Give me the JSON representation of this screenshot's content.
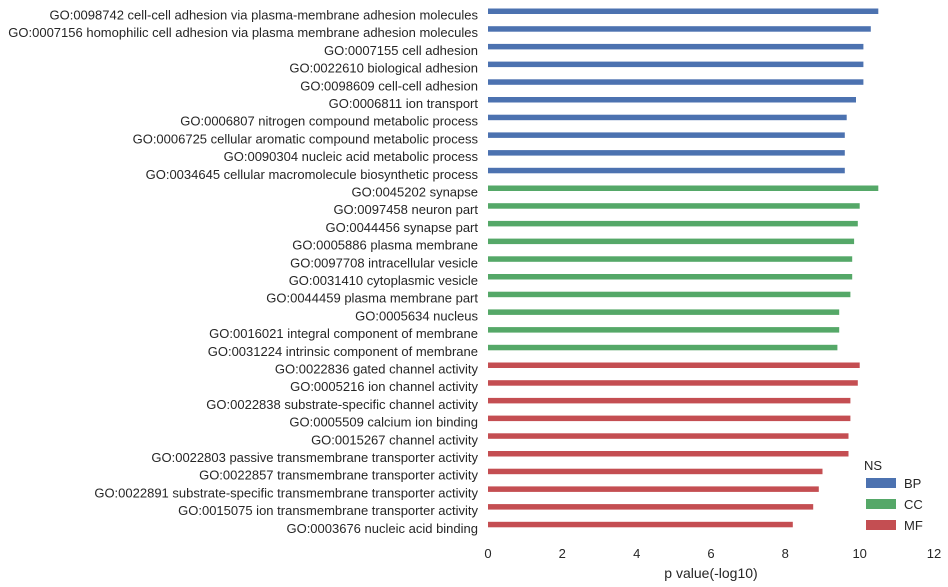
{
  "chart_data": {
    "type": "bar",
    "orientation": "horizontal",
    "xlabel": "p value(-log10)",
    "xlim": [
      0,
      12
    ],
    "xticks": [
      0,
      2,
      4,
      6,
      8,
      10,
      12
    ],
    "grid": false,
    "legend_position": "bottom-right",
    "legend_title": "NS",
    "series_colors": {
      "BP": "#4c72b0",
      "CC": "#55a868",
      "MF": "#c44e52"
    },
    "series": [
      {
        "name": "BP",
        "categories": [
          "GO:0098742 cell-cell adhesion via plasma-membrane adhesion molecules",
          "GO:0007156 homophilic cell adhesion via plasma membrane adhesion molecules",
          "GO:0007155 cell adhesion",
          "GO:0022610 biological adhesion",
          "GO:0098609 cell-cell adhesion",
          "GO:0006811 ion transport",
          "GO:0006807 nitrogen compound metabolic process",
          "GO:0006725 cellular aromatic compound metabolic process",
          "GO:0090304 nucleic acid metabolic process",
          "GO:0034645 cellular macromolecule biosynthetic process"
        ],
        "values": [
          10.5,
          10.3,
          10.1,
          10.1,
          10.1,
          9.9,
          9.65,
          9.6,
          9.6,
          9.6
        ]
      },
      {
        "name": "CC",
        "categories": [
          "GO:0045202 synapse",
          "GO:0097458 neuron part",
          "GO:0044456 synapse part",
          "GO:0005886 plasma membrane",
          "GO:0097708 intracellular vesicle",
          "GO:0031410 cytoplasmic vesicle",
          "GO:0044459 plasma membrane part",
          "GO:0005634 nucleus",
          "GO:0016021 integral component of membrane",
          "GO:0031224 intrinsic component of membrane"
        ],
        "values": [
          10.5,
          10.0,
          9.95,
          9.85,
          9.8,
          9.8,
          9.75,
          9.45,
          9.45,
          9.4
        ]
      },
      {
        "name": "MF",
        "categories": [
          "GO:0022836 gated channel activity",
          "GO:0005216 ion channel activity",
          "GO:0022838 substrate-specific channel activity",
          "GO:0005509 calcium ion binding",
          "GO:0015267 channel activity",
          "GO:0022803 passive transmembrane transporter activity",
          "GO:0022857 transmembrane transporter activity",
          "GO:0022891 substrate-specific transmembrane transporter activity",
          "GO:0015075 ion transmembrane transporter activity",
          "GO:0003676 nucleic acid binding"
        ],
        "values": [
          10.0,
          9.95,
          9.75,
          9.75,
          9.7,
          9.7,
          9.0,
          8.9,
          8.75,
          8.2
        ]
      }
    ]
  }
}
